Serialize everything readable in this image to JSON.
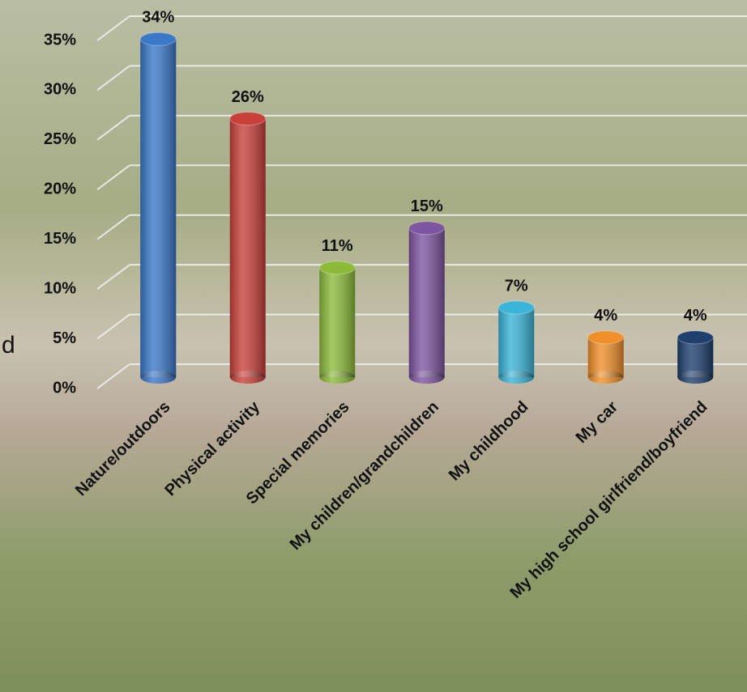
{
  "chart_data": {
    "type": "bar",
    "categories": [
      "Nature/outdoors",
      "Physical activity",
      "Special memories",
      "My children/grandchildren",
      "My childhood",
      "My car",
      "My high school girlfriend/boyfriend"
    ],
    "values": [
      34,
      26,
      11,
      15,
      7,
      4,
      4
    ],
    "value_labels": [
      "34%",
      "26%",
      "11%",
      "15%",
      "7%",
      "4%",
      "4%"
    ],
    "colors": [
      "#3a78c8",
      "#c9403a",
      "#8cbb3a",
      "#7e55a0",
      "#3ab4d8",
      "#f0902a",
      "#1f3f6e"
    ],
    "ylim": [
      0,
      35
    ],
    "yticks": [
      {
        "value": 0,
        "label": "0%"
      },
      {
        "value": 5,
        "label": "5%"
      },
      {
        "value": 10,
        "label": "10%"
      },
      {
        "value": 15,
        "label": "15%"
      },
      {
        "value": 20,
        "label": "20%"
      },
      {
        "value": 25,
        "label": "25%"
      },
      {
        "value": 30,
        "label": "30%"
      },
      {
        "value": 35,
        "label": "35%"
      }
    ],
    "grid": true,
    "annotation": "d"
  }
}
